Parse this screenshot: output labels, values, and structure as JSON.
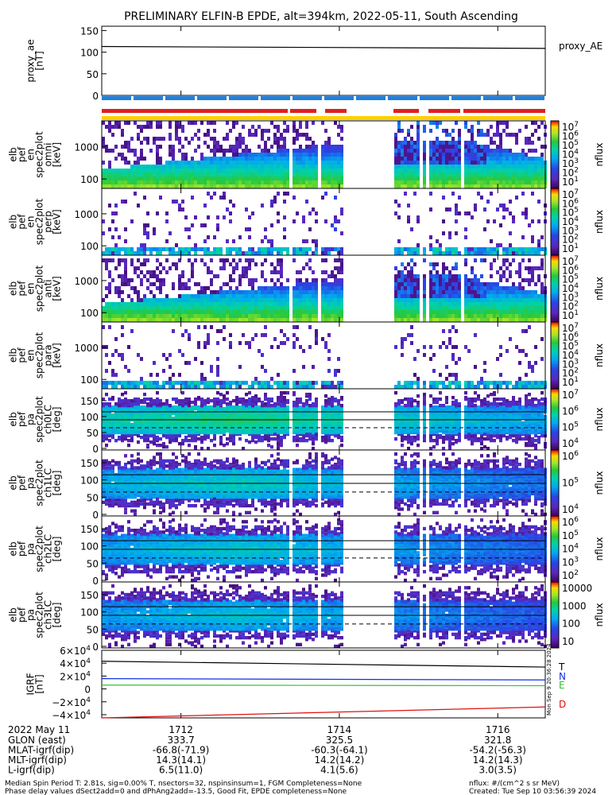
{
  "title": "PRELIMINARY ELFIN-B EPDE, alt=394km, 2022-05-11, South Ascending",
  "panels": [
    {
      "id": "proxy_ae",
      "ylabel": [
        "proxy_ae",
        "[nT]"
      ],
      "legend": "proxy_AE",
      "yticks": [
        "150",
        "100",
        "50",
        "0"
      ]
    },
    {
      "id": "en_omni",
      "ylabel": [
        "elb",
        "pef",
        "en",
        "spec2plot",
        "omni",
        "[keV]"
      ],
      "yticks": [
        "1000",
        "100"
      ],
      "cbar": [
        "10^7",
        "10^6",
        "10^5",
        "10^4",
        "10^3",
        "10^2",
        "10^1"
      ],
      "cbar_label": "nflux"
    },
    {
      "id": "en_perp",
      "ylabel": [
        "elb",
        "pef",
        "en",
        "spec2plot",
        "perp",
        "[keV]"
      ],
      "yticks": [
        "1000",
        "100"
      ],
      "cbar": [
        "10^7",
        "10^6",
        "10^5",
        "10^4",
        "10^3",
        "10^2",
        "10^1"
      ],
      "cbar_label": "nflux"
    },
    {
      "id": "en_anti",
      "ylabel": [
        "elb",
        "pef",
        "en",
        "spec2plot",
        "anti",
        "[keV]"
      ],
      "yticks": [
        "1000",
        "100"
      ],
      "cbar": [
        "10^7",
        "10^6",
        "10^5",
        "10^4",
        "10^3",
        "10^2",
        "10^1"
      ],
      "cbar_label": "nflux"
    },
    {
      "id": "en_para",
      "ylabel": [
        "elb",
        "pef",
        "en",
        "spec2plot",
        "para",
        "[keV]"
      ],
      "yticks": [
        "1000",
        "100"
      ],
      "cbar": [
        "10^7",
        "10^6",
        "10^5",
        "10^4",
        "10^3",
        "10^2",
        "10^1"
      ],
      "cbar_label": "nflux"
    },
    {
      "id": "pa_ch0",
      "ylabel": [
        "elb",
        "pef",
        "pa",
        "spec2plot",
        "ch0LC",
        "[deg]"
      ],
      "yticks": [
        "150",
        "100",
        "50",
        "0"
      ],
      "cbar": [
        "10^7",
        "10^6",
        "10^5",
        "10^4"
      ],
      "cbar_label": "nflux"
    },
    {
      "id": "pa_ch1",
      "ylabel": [
        "elb",
        "pef",
        "pa",
        "spec2plot",
        "ch1LC",
        "[deg]"
      ],
      "yticks": [
        "150",
        "100",
        "50",
        "0"
      ],
      "cbar": [
        "10^6",
        "10^5",
        "10^4"
      ],
      "cbar_label": "nflux"
    },
    {
      "id": "pa_ch2",
      "ylabel": [
        "elb",
        "pef",
        "pa",
        "spec2plot",
        "ch2LC",
        "[deg]"
      ],
      "yticks": [
        "150",
        "100",
        "50",
        "0"
      ],
      "cbar": [
        "10^6",
        "10^5",
        "10^4",
        "10^3",
        "10^2"
      ],
      "cbar_label": "nflux"
    },
    {
      "id": "pa_ch3",
      "ylabel": [
        "elb",
        "pef",
        "pa",
        "spec2plot",
        "ch3LC",
        "[deg]"
      ],
      "yticks": [
        "150",
        "100",
        "50",
        "0"
      ],
      "cbar": [
        "10000",
        "1000",
        "100",
        "10"
      ],
      "cbar_label": "nflux"
    },
    {
      "id": "igrf",
      "ylabel": [
        "IGRF",
        "[nT]"
      ],
      "yticks": [
        "6×10^4",
        "4×10^4",
        "2×10^4",
        "0",
        "−2×10^4",
        "−4×10^4"
      ],
      "legend": [
        "T",
        "N",
        "E",
        "D"
      ]
    }
  ],
  "colors": {
    "T": "#000000",
    "N": "#1030e0",
    "E": "#30c030",
    "D": "#e01010",
    "bar_red": "#e02020",
    "bar_blue": "#2080e0",
    "bar_yellow": "#ffd000"
  },
  "side_stamp": "Mon Sep 9 20:36:28 2024",
  "footer": {
    "date": "2022 May 11",
    "rows": [
      {
        "label": "GLON (east)",
        "vals": [
          "333.7",
          "325.5",
          "321.8"
        ]
      },
      {
        "label": "MLAT-igrf(dip)",
        "vals": [
          "-66.8(-71.9)",
          "-60.3(-64.1)",
          "-54.2(-56.3)"
        ]
      },
      {
        "label": "MLT-igrf(dip)",
        "vals": [
          "14.3(14.1)",
          "14.2(14.2)",
          "14.2(14.3)"
        ]
      },
      {
        "label": "L-igrf(dip)",
        "vals": [
          "6.5(11.0)",
          "4.1(5.6)",
          "3.0(3.5)"
        ]
      }
    ],
    "times": [
      "1712",
      "1714",
      "1716"
    ],
    "note1": "Median Spin Period T: 2.81s, sig=0.00% T, nsectors=32, nspinsinsum=1, FGM Completeness=None",
    "note2": "Phase delay values dSect2add=0 and dPhAng2add=-13.5, Good Fit, EPDE completeness=None",
    "units": "nflux: #/(cm^2 s sr MeV)",
    "created": "Created: Tue Sep 10 03:56:39 2024"
  },
  "chart_data": [
    {
      "type": "line",
      "panel": "proxy_ae",
      "ylim": [
        0,
        150
      ],
      "series": [
        {
          "name": "proxy_AE",
          "x": [
            1711.0,
            1716.6
          ],
          "values": [
            106,
            102
          ]
        }
      ]
    },
    {
      "type": "heatmap",
      "panel": "en_omni",
      "yscale": "log",
      "ylabel": "[keV]"
    },
    {
      "type": "heatmap",
      "panel": "en_perp",
      "yscale": "log",
      "ylabel": "[keV]"
    },
    {
      "type": "heatmap",
      "panel": "en_anti",
      "yscale": "log",
      "ylabel": "[keV]"
    },
    {
      "type": "heatmap",
      "panel": "en_para",
      "yscale": "log",
      "ylabel": "[keV]"
    },
    {
      "type": "heatmap",
      "panel": "pa_ch0",
      "ylim": [
        0,
        180
      ],
      "ylabel": "[deg]"
    },
    {
      "type": "heatmap",
      "panel": "pa_ch1",
      "ylim": [
        0,
        180
      ],
      "ylabel": "[deg]"
    },
    {
      "type": "heatmap",
      "panel": "pa_ch2",
      "ylim": [
        0,
        180
      ],
      "ylabel": "[deg]"
    },
    {
      "type": "heatmap",
      "panel": "pa_ch3",
      "ylim": [
        0,
        180
      ],
      "ylabel": "[deg]"
    },
    {
      "type": "line",
      "panel": "igrf",
      "ylim": [
        -45000,
        60000
      ],
      "series": [
        {
          "name": "T",
          "x": [
            1711.0,
            1716.6
          ],
          "values": [
            43000,
            34000
          ]
        },
        {
          "name": "N",
          "x": [
            1711.0,
            1716.6
          ],
          "values": [
            16000,
            14000
          ]
        },
        {
          "name": "E",
          "x": [
            1711.0,
            1716.6
          ],
          "values": [
            6000,
            5000
          ]
        },
        {
          "name": "D",
          "x": [
            1711.0,
            1716.6
          ],
          "values": [
            -45000,
            -28000
          ]
        }
      ]
    }
  ]
}
